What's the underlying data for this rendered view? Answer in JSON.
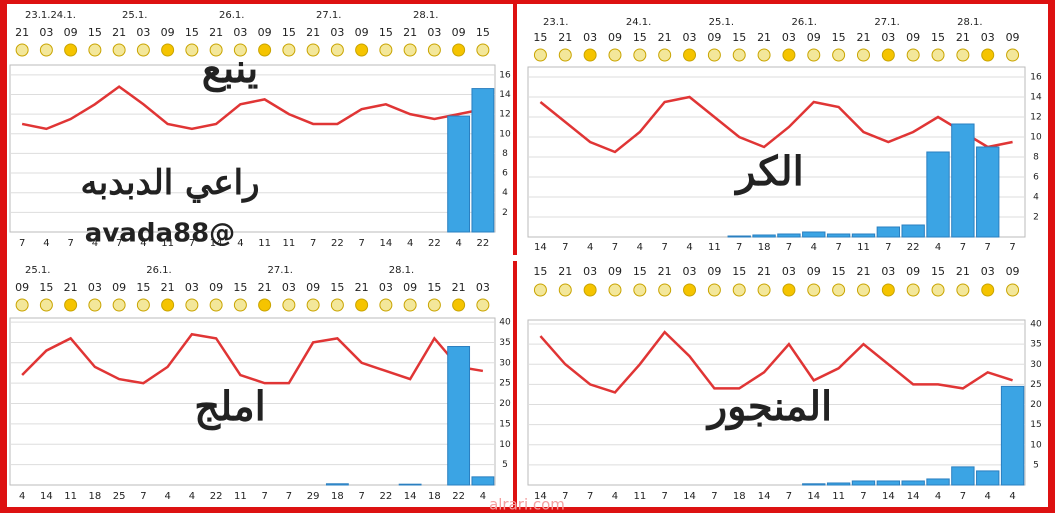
{
  "chart_data": [
    {
      "type": "line",
      "title": "ينبع",
      "dates": [
        "23.1.24.1.",
        "25.1.",
        "26.1.",
        "27.1.",
        "28.1."
      ],
      "categories": [
        "21",
        "03",
        "09",
        "15",
        "21",
        "03",
        "09",
        "15",
        "21",
        "03",
        "09",
        "15",
        "21",
        "03",
        "09",
        "15",
        "21",
        "03",
        "09",
        "15"
      ],
      "series": [
        {
          "type": "line",
          "color": "#e03535",
          "values": [
            11,
            10.5,
            11.5,
            13,
            14.8,
            13,
            11,
            10.5,
            11,
            13,
            13.5,
            12,
            11,
            11,
            12.5,
            13,
            12,
            11.5,
            12,
            12.5
          ]
        },
        {
          "type": "bar",
          "color": "#3ba4e4",
          "values": [
            0,
            0,
            0,
            0,
            0,
            0,
            0,
            0,
            0,
            0,
            0,
            0,
            0,
            0,
            0,
            0,
            0,
            0,
            11.8,
            14.6
          ]
        }
      ],
      "wind": [
        7,
        4,
        7,
        4,
        7,
        4,
        11,
        7,
        14,
        4,
        11,
        11,
        7,
        22,
        7,
        14,
        4,
        22,
        4,
        22
      ],
      "ylim": [
        0,
        17
      ],
      "yticks": [
        2,
        4,
        6,
        8,
        10,
        12,
        14,
        16
      ]
    },
    {
      "type": "line",
      "title": "الكر",
      "dates": [
        "23.1.",
        "24.1.",
        "25.1.",
        "26.1.",
        "27.1.",
        "28.1."
      ],
      "categories": [
        "15",
        "21",
        "03",
        "09",
        "15",
        "21",
        "03",
        "09",
        "15",
        "21",
        "03",
        "09",
        "15",
        "21",
        "03",
        "09",
        "15",
        "21",
        "03",
        "09"
      ],
      "series": [
        {
          "type": "line",
          "color": "#e03535",
          "values": [
            13.5,
            11.5,
            9.5,
            8.5,
            10.5,
            13.5,
            14,
            12,
            10,
            9,
            11,
            13.5,
            13,
            10.5,
            9.5,
            10.5,
            12,
            10.5,
            9,
            9.5
          ]
        },
        {
          "type": "bar",
          "color": "#3ba4e4",
          "values": [
            0,
            0,
            0,
            0,
            0,
            0,
            0,
            0,
            0.1,
            0.2,
            0.3,
            0.5,
            0.3,
            0.3,
            1,
            1.2,
            8.5,
            11.3,
            9,
            0
          ]
        }
      ],
      "wind": [
        14,
        7,
        4,
        7,
        4,
        7,
        4,
        11,
        7,
        18,
        7,
        4,
        7,
        11,
        7,
        22,
        4,
        7,
        7,
        7
      ],
      "ylim": [
        0,
        17
      ],
      "yticks": [
        2,
        4,
        6,
        8,
        10,
        12,
        14,
        16
      ]
    },
    {
      "type": "line",
      "title": "املج",
      "dates": [
        "25.1.",
        "26.1.",
        "27.1.",
        "28.1."
      ],
      "categories": [
        "09",
        "15",
        "21",
        "03",
        "09",
        "15",
        "21",
        "03",
        "09",
        "15",
        "21",
        "03",
        "09",
        "15",
        "21",
        "03",
        "09",
        "15",
        "21",
        "03"
      ],
      "series": [
        {
          "type": "line",
          "color": "#e03535",
          "values": [
            27,
            33,
            36,
            29,
            26,
            25,
            29,
            37,
            36,
            27,
            25,
            25,
            35,
            36,
            30,
            28,
            26,
            36,
            29,
            28
          ]
        },
        {
          "type": "bar",
          "color": "#3ba4e4",
          "values": [
            0,
            0,
            0,
            0,
            0,
            0,
            0,
            0,
            0,
            0,
            0,
            0,
            0,
            0.3,
            0,
            0,
            0.2,
            0,
            34,
            2
          ]
        }
      ],
      "wind": [
        4,
        14,
        11,
        18,
        25,
        7,
        4,
        4,
        22,
        11,
        7,
        7,
        29,
        18,
        7,
        22,
        14,
        18,
        22,
        4
      ],
      "ylim": [
        0,
        41
      ],
      "yticks": [
        5,
        10,
        15,
        20,
        25,
        30,
        35,
        40
      ]
    },
    {
      "type": "line",
      "title": "المنجور",
      "dates": [],
      "categories": [
        "15",
        "21",
        "03",
        "09",
        "15",
        "21",
        "03",
        "09",
        "15",
        "21",
        "03",
        "09",
        "15",
        "21",
        "03",
        "09",
        "15",
        "21",
        "03",
        "09"
      ],
      "series": [
        {
          "type": "line",
          "color": "#e03535",
          "values": [
            37,
            30,
            25,
            23,
            30,
            38,
            32,
            24,
            24,
            28,
            35,
            26,
            29,
            35,
            30,
            25,
            25,
            24,
            28,
            26
          ]
        },
        {
          "type": "bar",
          "color": "#3ba4e4",
          "values": [
            0,
            0,
            0,
            0,
            0,
            0,
            0,
            0,
            0,
            0,
            0,
            0.3,
            0.5,
            1,
            1,
            1,
            1.5,
            4.5,
            3.5,
            24.5
          ]
        }
      ],
      "wind": [
        14,
        7,
        7,
        4,
        11,
        7,
        14,
        7,
        18,
        14,
        7,
        14,
        11,
        7,
        14,
        14,
        4,
        7,
        4,
        4
      ],
      "ylim": [
        0,
        41
      ],
      "yticks": [
        5,
        10,
        15,
        20,
        25,
        30,
        35,
        40
      ]
    }
  ],
  "annotations": {
    "author": "راعي الدبدبه",
    "handle": "avada88@",
    "watermark": "alrari.com"
  }
}
